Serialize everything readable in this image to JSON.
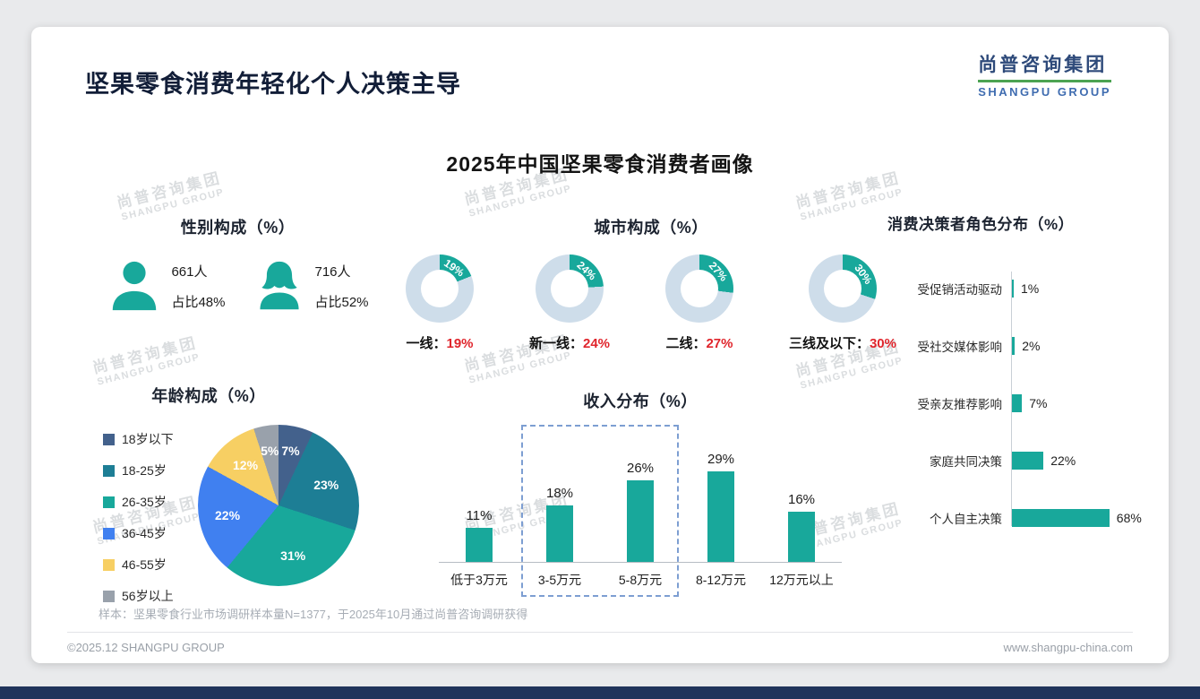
{
  "page": {
    "title": "坚果零食消费年轻化个人决策主导",
    "main_chart_title": "2025年中国坚果零食消费者画像",
    "sample_note": "样本：坚果零食行业市场调研样本量N=1377，于2025年10月通过尚普咨询调研获得",
    "footer_left": "©2025.12 SHANGPU GROUP",
    "footer_right": "www.shangpu-china.com"
  },
  "logo": {
    "name_cn": "尚普咨询集团",
    "name_en": "SHANGPU GROUP"
  },
  "watermark": {
    "line1": "尚普咨询集团",
    "line2": "SHANGPU GROUP"
  },
  "colors": {
    "teal": "#18A89B",
    "donut_rest": "#CEDDEA",
    "red": "#E0252C",
    "bottom_bar": "#20345B"
  },
  "chart_data": [
    {
      "type": "pictogram",
      "title": "性别构成（%）",
      "items": [
        {
          "gender": "male",
          "count": "661人",
          "share": "占比48%"
        },
        {
          "gender": "female",
          "count": "716人",
          "share": "占比52%"
        }
      ]
    },
    {
      "type": "donut",
      "title": "城市构成（%）",
      "items": [
        {
          "label": "一线",
          "value": 19
        },
        {
          "label": "新一线",
          "value": 24
        },
        {
          "label": "二线",
          "value": 27
        },
        {
          "label": "三线及以下",
          "value": 30
        }
      ]
    },
    {
      "type": "pie",
      "title": "年龄构成（%）",
      "start_angle_deg": 0,
      "clockwise": true,
      "segments": [
        {
          "label": "18岁以下",
          "value": 7,
          "color": "#43618C"
        },
        {
          "label": "18-25岁",
          "value": 23,
          "color": "#1D7E95"
        },
        {
          "label": "26-35岁",
          "value": 31,
          "color": "#18A89B"
        },
        {
          "label": "36-45岁",
          "value": 22,
          "color": "#4080F0"
        },
        {
          "label": "46-55岁",
          "value": 12,
          "color": "#F7CF63"
        },
        {
          "label": "56岁以上",
          "value": 5,
          "color": "#99A1AB"
        }
      ]
    },
    {
      "type": "bar",
      "title": "收入分布（%）",
      "categories": [
        "低于3万元",
        "3-5万元",
        "5-8万元",
        "8-12万元",
        "12万元以上"
      ],
      "values": [
        11,
        18,
        26,
        29,
        16
      ],
      "ylim": [
        0,
        32
      ],
      "highlight": {
        "from_index": 1,
        "to_index": 2,
        "style": "dashed-box"
      }
    },
    {
      "type": "hbar",
      "title": "消费决策者角色分布（%）",
      "categories": [
        "受促销活动驱动",
        "受社交媒体影响",
        "受亲友推荐影响",
        "家庭共同决策",
        "个人自主决策"
      ],
      "values": [
        1,
        2,
        7,
        22,
        68
      ],
      "xmax": 70
    }
  ]
}
